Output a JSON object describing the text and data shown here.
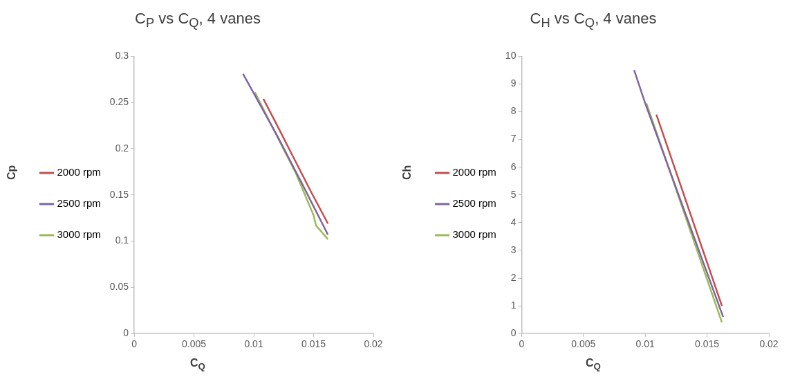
{
  "chart_data": [
    {
      "type": "line",
      "title": "C$_{P}$ vs C$_{Q}$, 4 vanes",
      "xlabel": "C$_{Q}$",
      "ylabel": "Cp",
      "xlim": [
        0,
        0.02
      ],
      "xticks": [
        0,
        0.005,
        0.01,
        0.015,
        0.02
      ],
      "ylim": [
        0,
        0.3
      ],
      "yticks": [
        0,
        0.05,
        0.1,
        0.15,
        0.2,
        0.25,
        0.3
      ],
      "grid": false,
      "legend": "left",
      "marker": "none",
      "series": [
        {
          "name": "2000 rpm",
          "color": "#c0504d",
          "x": [
            0.0108,
            0.012,
            0.0135,
            0.0148,
            0.0162
          ],
          "values": [
            0.254,
            0.224,
            0.186,
            0.153,
            0.119
          ]
        },
        {
          "name": "2500 rpm",
          "color": "#8064a2",
          "x": [
            0.0091,
            0.01,
            0.012,
            0.014,
            0.0162
          ],
          "values": [
            0.281,
            0.26,
            0.213,
            0.163,
            0.107
          ]
        },
        {
          "name": "3000 rpm",
          "color": "#9bbb59",
          "x": [
            0.0101,
            0.012,
            0.0135,
            0.015,
            0.0152,
            0.0162
          ],
          "values": [
            0.261,
            0.212,
            0.174,
            0.128,
            0.117,
            0.102
          ]
        }
      ]
    },
    {
      "type": "line",
      "title": "C$_{H}$ vs C$_{Q}$, 4 vanes",
      "xlabel": "C$_{Q}$",
      "ylabel": "Ch",
      "xlim": [
        0,
        0.02
      ],
      "xticks": [
        0,
        0.005,
        0.01,
        0.015,
        0.02
      ],
      "ylim": [
        0,
        10
      ],
      "yticks": [
        0,
        1,
        2,
        3,
        4,
        5,
        6,
        7,
        8,
        9,
        10
      ],
      "grid": false,
      "legend": "left",
      "marker": "none",
      "series": [
        {
          "name": "2000 rpm",
          "color": "#c0504d",
          "x": [
            0.0109,
            0.0162
          ],
          "values": [
            7.9,
            1.0
          ]
        },
        {
          "name": "2500 rpm",
          "color": "#8064a2",
          "x": [
            0.0091,
            0.01,
            0.0163
          ],
          "values": [
            9.5,
            8.3,
            0.6
          ]
        },
        {
          "name": "3000 rpm",
          "color": "#9bbb59",
          "x": [
            0.0101,
            0.0162
          ],
          "values": [
            8.3,
            0.4
          ]
        }
      ]
    }
  ]
}
